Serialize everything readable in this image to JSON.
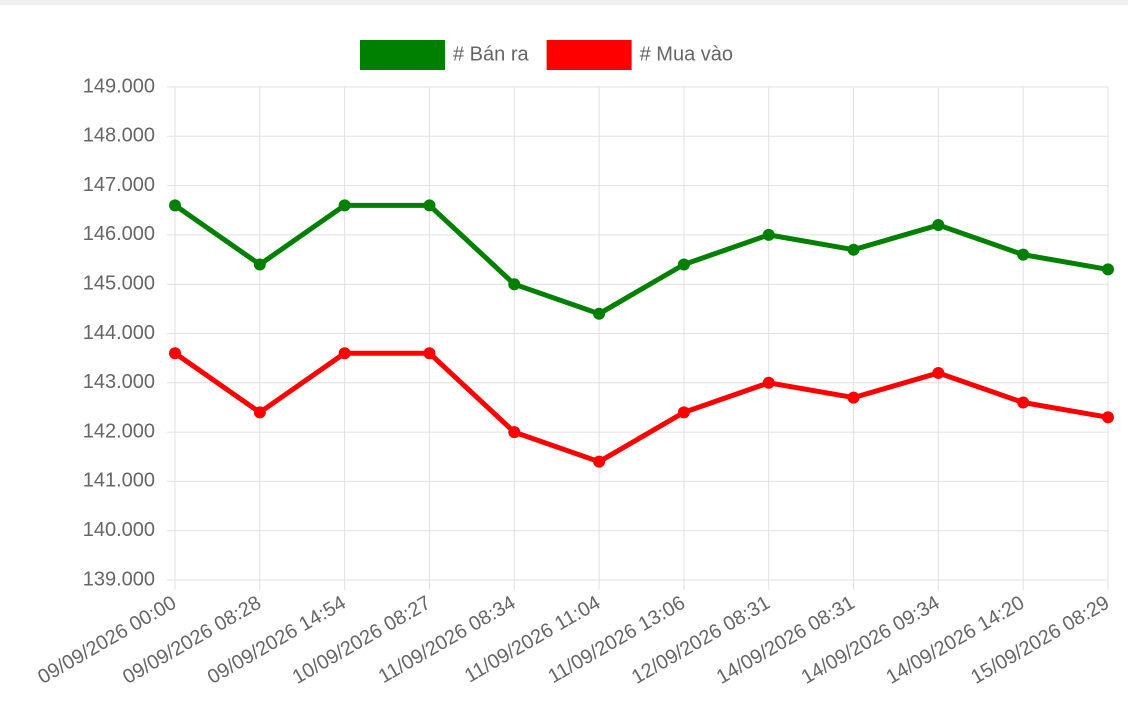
{
  "chart_data": {
    "type": "line",
    "categories": [
      "09/09/2026 00:00",
      "09/09/2026 08:28",
      "09/09/2026 14:54",
      "10/09/2026 08:27",
      "11/09/2026 08:34",
      "11/09/2026 11:04",
      "11/09/2026 13:06",
      "12/09/2026 08:31",
      "14/09/2026 08:31",
      "14/09/2026 09:34",
      "14/09/2026 14:20",
      "15/09/2026 08:29"
    ],
    "series": [
      {
        "name": "# Bán ra",
        "color": "#008000",
        "values": [
          146600,
          145400,
          146600,
          146600,
          145000,
          144400,
          145400,
          146000,
          145700,
          146200,
          145600,
          145300
        ]
      },
      {
        "name": "# Mua vào",
        "color": "#ff0000",
        "values": [
          143600,
          142400,
          143600,
          143600,
          142000,
          141400,
          142400,
          143000,
          142700,
          143200,
          142600,
          142300
        ]
      }
    ],
    "ylim": [
      139000,
      149000
    ],
    "yticks": [
      {
        "value": 139000,
        "label": "139.000"
      },
      {
        "value": 140000,
        "label": "140.000"
      },
      {
        "value": 141000,
        "label": "141.000"
      },
      {
        "value": 142000,
        "label": "142.000"
      },
      {
        "value": 143000,
        "label": "143.000"
      },
      {
        "value": 144000,
        "label": "144.000"
      },
      {
        "value": 145000,
        "label": "145.000"
      },
      {
        "value": 146000,
        "label": "146.000"
      },
      {
        "value": 147000,
        "label": "147.000"
      },
      {
        "value": 148000,
        "label": "148.000"
      },
      {
        "value": 149000,
        "label": "149.000"
      }
    ],
    "grid": true,
    "legend": "top"
  }
}
